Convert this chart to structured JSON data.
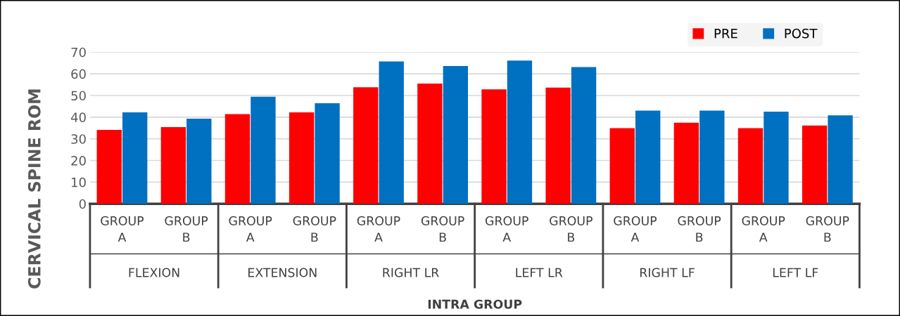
{
  "chart_data": {
    "type": "bar",
    "categories": [
      "GROUP A",
      "GROUP B",
      "GROUP A",
      "GROUP B",
      "GROUP A",
      "GROUP B",
      "GROUP A",
      "GROUP B",
      "GROUP A",
      "GROUP B",
      "GROUP A",
      "GROUP B"
    ],
    "annotations": [
      "FLEXION",
      "EXTENSION",
      "RIGHT LR",
      "LEFT LR",
      "RIGHT LF",
      "LEFT LF"
    ],
    "series": [
      {
        "name": "PRE",
        "color": "#ff0000",
        "values": [
          34.1,
          35.4,
          41.4,
          42.2,
          53.8,
          55.5,
          52.8,
          53.6,
          34.9,
          37.4,
          34.9,
          36.1
        ]
      },
      {
        "name": "POST",
        "color": "#0070c0",
        "values": [
          42.2,
          39.3,
          49.4,
          46.4,
          65.7,
          63.6,
          66.1,
          63.1,
          43.0,
          43.0,
          42.5,
          40.8
        ]
      }
    ],
    "xlabel": "INTRA GROUP",
    "ylabel": "CERVICAL SPINE ROM",
    "ylim": [
      0,
      70
    ],
    "yticks": [
      0,
      10,
      20,
      30,
      40,
      50,
      60,
      70
    ],
    "grid": "y",
    "legend": "top right"
  }
}
